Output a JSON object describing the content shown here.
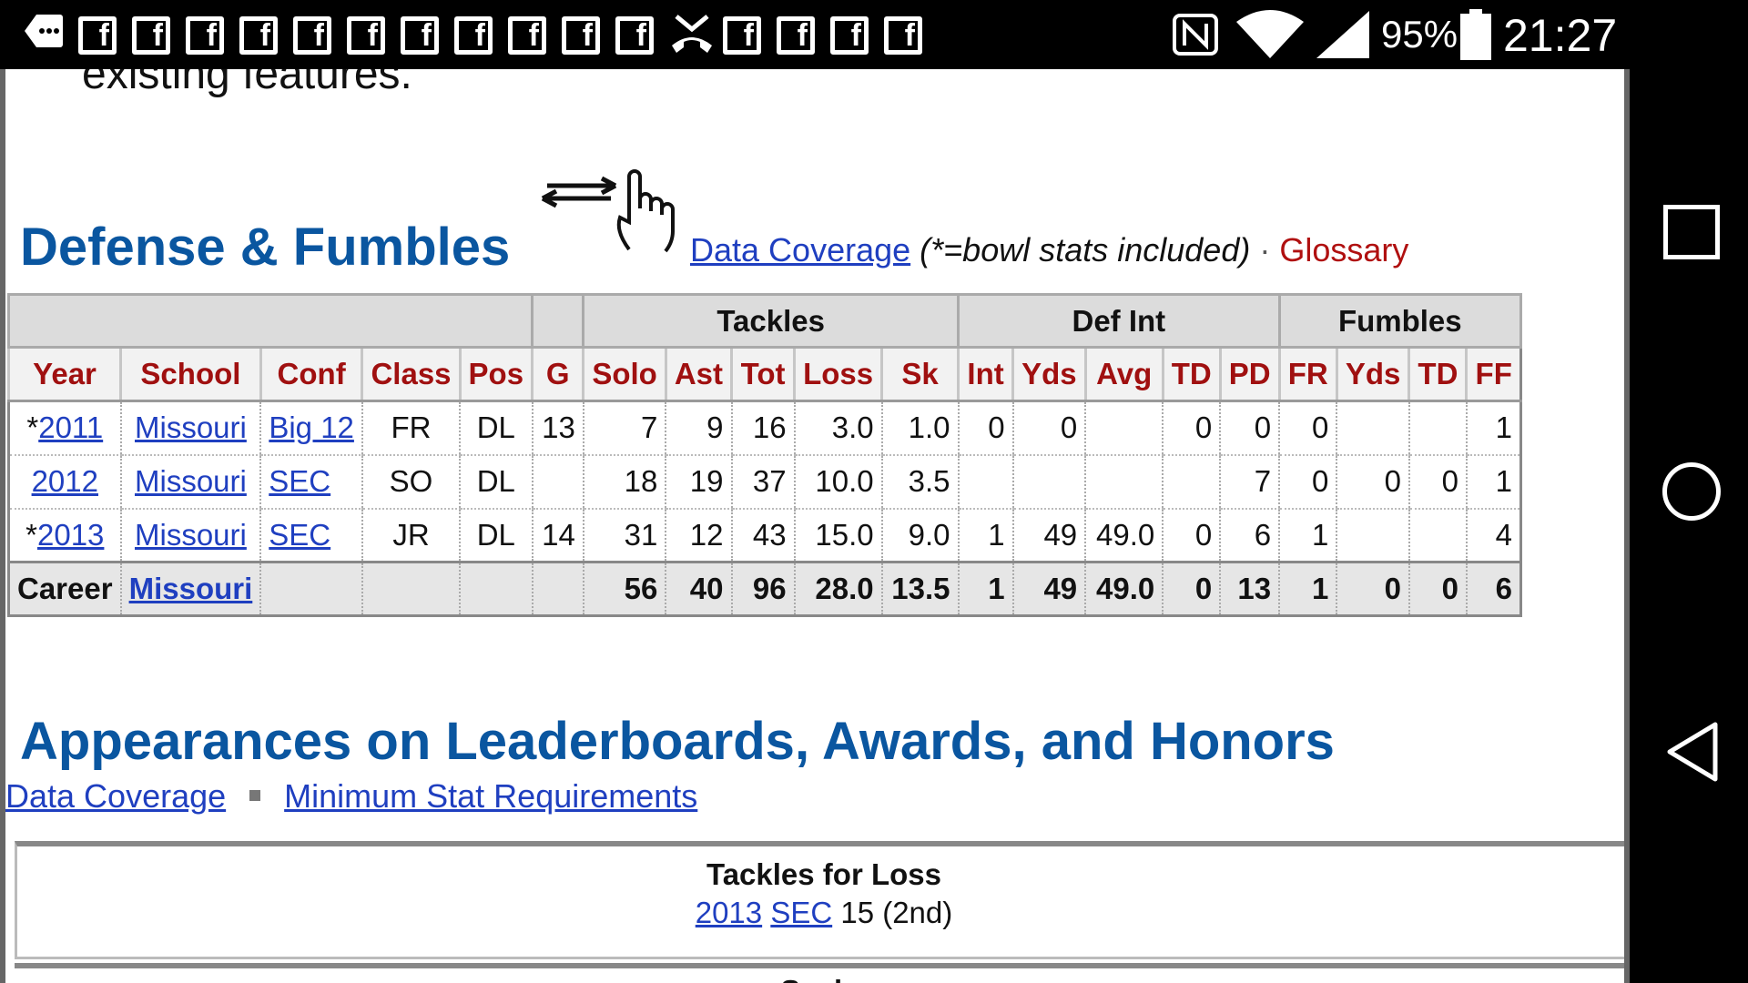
{
  "status_bar": {
    "battery_pct": "95%",
    "time": "21:27",
    "icons": [
      "more-notifications-icon",
      "facebook-icon",
      "missed-call-icon",
      "nfc-icon",
      "wifi-icon",
      "cell-signal-icon",
      "battery-icon"
    ]
  },
  "page": {
    "intro_text": "existing features.",
    "defense": {
      "title": "Defense & Fumbles",
      "data_coverage": "Data Coverage",
      "note": "(*=bowl stats included)",
      "separator": "·",
      "glossary": "Glossary"
    },
    "table": {
      "groups": [
        "",
        "",
        "Tackles",
        "Def Int",
        "Fumbles"
      ],
      "headers": [
        "Year",
        "School",
        "Conf",
        "Class",
        "Pos",
        "G",
        "Solo",
        "Ast",
        "Tot",
        "Loss",
        "Sk",
        "Int",
        "Yds",
        "Avg",
        "TD",
        "PD",
        "FR",
        "Yds",
        "TD",
        "FF"
      ],
      "rows": [
        {
          "star": "*",
          "year": "2011",
          "school": "Missouri",
          "conf": "Big 12",
          "class": "FR",
          "pos": "DL",
          "g": "13",
          "solo": "7",
          "ast": "9",
          "tot": "16",
          "loss": "3.0",
          "sk": "1.0",
          "int": "0",
          "iyds": "0",
          "avg": "",
          "td": "0",
          "pd": "0",
          "fr": "0",
          "fyds": "",
          "ftd": "",
          "ff": "1"
        },
        {
          "star": "",
          "year": "2012",
          "school": "Missouri",
          "conf": "SEC",
          "class": "SO",
          "pos": "DL",
          "g": "",
          "solo": "18",
          "ast": "19",
          "tot": "37",
          "loss": "10.0",
          "sk": "3.5",
          "int": "",
          "iyds": "",
          "avg": "",
          "td": "",
          "pd": "7",
          "fr": "0",
          "fyds": "0",
          "ftd": "0",
          "ff": "1"
        },
        {
          "star": "*",
          "year": "2013",
          "school": "Missouri",
          "conf": "SEC",
          "class": "JR",
          "pos": "DL",
          "g": "14",
          "solo": "31",
          "ast": "12",
          "tot": "43",
          "loss": "15.0",
          "sk": "9.0",
          "int": "1",
          "iyds": "49",
          "avg": "49.0",
          "td": "0",
          "pd": "6",
          "fr": "1",
          "fyds": "",
          "ftd": "",
          "ff": "4"
        }
      ],
      "career": {
        "label": "Career",
        "school": "Missouri",
        "solo": "56",
        "ast": "40",
        "tot": "96",
        "loss": "28.0",
        "sk": "13.5",
        "int": "1",
        "iyds": "49",
        "avg": "49.0",
        "td": "0",
        "pd": "13",
        "fr": "1",
        "fyds": "0",
        "ftd": "0",
        "ff": "6"
      }
    },
    "awards": {
      "title": "Appearances on Leaderboards, Awards, and Honors",
      "data_coverage": "Data Coverage",
      "min_stats": "Minimum Stat Requirements",
      "box_title": "Tackles for Loss",
      "box_year": "2013",
      "box_conf": "SEC",
      "box_value": "15 (2nd)",
      "box2_title": "Sacks"
    }
  },
  "colors": {
    "title_blue": "#0a56a0",
    "header_red": "#a01010",
    "link_blue": "#1f3fc0"
  }
}
